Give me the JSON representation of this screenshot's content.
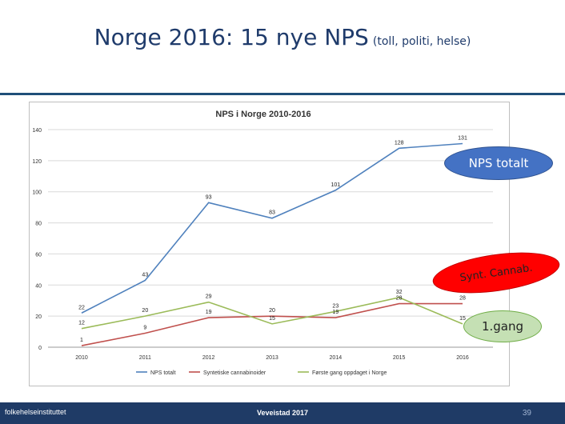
{
  "slide": {
    "title": "Norge 2016: 15 nye NPS",
    "subtitle": "(toll, politi, helse)"
  },
  "callouts": {
    "nps": "NPS totalt",
    "cannab": "Synt. Cannab.",
    "gang": "1.gang"
  },
  "footer": {
    "logo": "folkehelseinstituttet",
    "event": "Veveistad 2017",
    "page": "39"
  },
  "chart_data": {
    "type": "line",
    "title": "NPS i Norge 2010-2016",
    "categories": [
      "2010",
      "2011",
      "2012",
      "2013",
      "2014",
      "2015",
      "2016"
    ],
    "yticks": [
      "0",
      "20",
      "40",
      "60",
      "80",
      "100",
      "120",
      "140"
    ],
    "ylim": [
      0,
      140
    ],
    "grid": true,
    "legend_position": "bottom",
    "series": [
      {
        "name": "NPS totalt",
        "color": "#4f81bd",
        "values": [
          22,
          43,
          93,
          83,
          101,
          128,
          131
        ],
        "labels": [
          "22",
          "43",
          "93",
          "83",
          "101",
          "128",
          "131"
        ]
      },
      {
        "name": "Syntetiske cannabinoider",
        "color": "#c0504d",
        "values": [
          1,
          9,
          19,
          20,
          19,
          28,
          28
        ],
        "labels": [
          "1",
          "9",
          "19",
          "20",
          "19",
          "28",
          "28"
        ]
      },
      {
        "name": "Første gang oppdaget i Norge",
        "color": "#9bbb59",
        "values": [
          12,
          20,
          29,
          15,
          23,
          32,
          15
        ],
        "labels": [
          "12",
          "20",
          "29",
          "15",
          "23",
          "32",
          "15"
        ]
      }
    ]
  }
}
